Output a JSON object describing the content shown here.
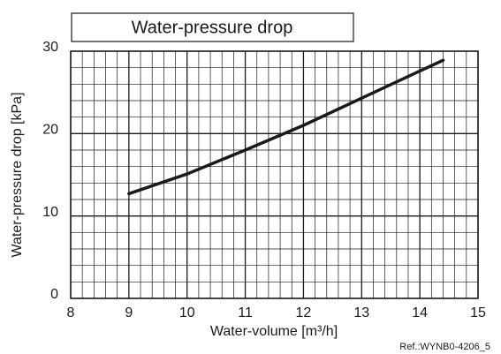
{
  "chart_data": {
    "type": "line",
    "title": "Water-pressure drop",
    "x_label": "Water-volume [m³/h]",
    "y_label": "Water-pressure drop [kPa]",
    "annotation": "Ref.:WYNB0-4206_5",
    "x": [
      9,
      10,
      11,
      12,
      13,
      14,
      14.4
    ],
    "series": [
      {
        "name": "Water-pressure drop",
        "color": "#1a1a1a",
        "values": [
          12.7,
          15.1,
          18.0,
          21.0,
          24.3,
          27.6,
          28.9
        ]
      }
    ],
    "xlim": [
      8,
      15
    ],
    "xticks": [
      8,
      9,
      10,
      11,
      12,
      13,
      14,
      15
    ],
    "ylim": [
      0,
      30
    ],
    "yticks": [
      0,
      10,
      20,
      30
    ],
    "grid": true,
    "minor_divisions": 5
  }
}
